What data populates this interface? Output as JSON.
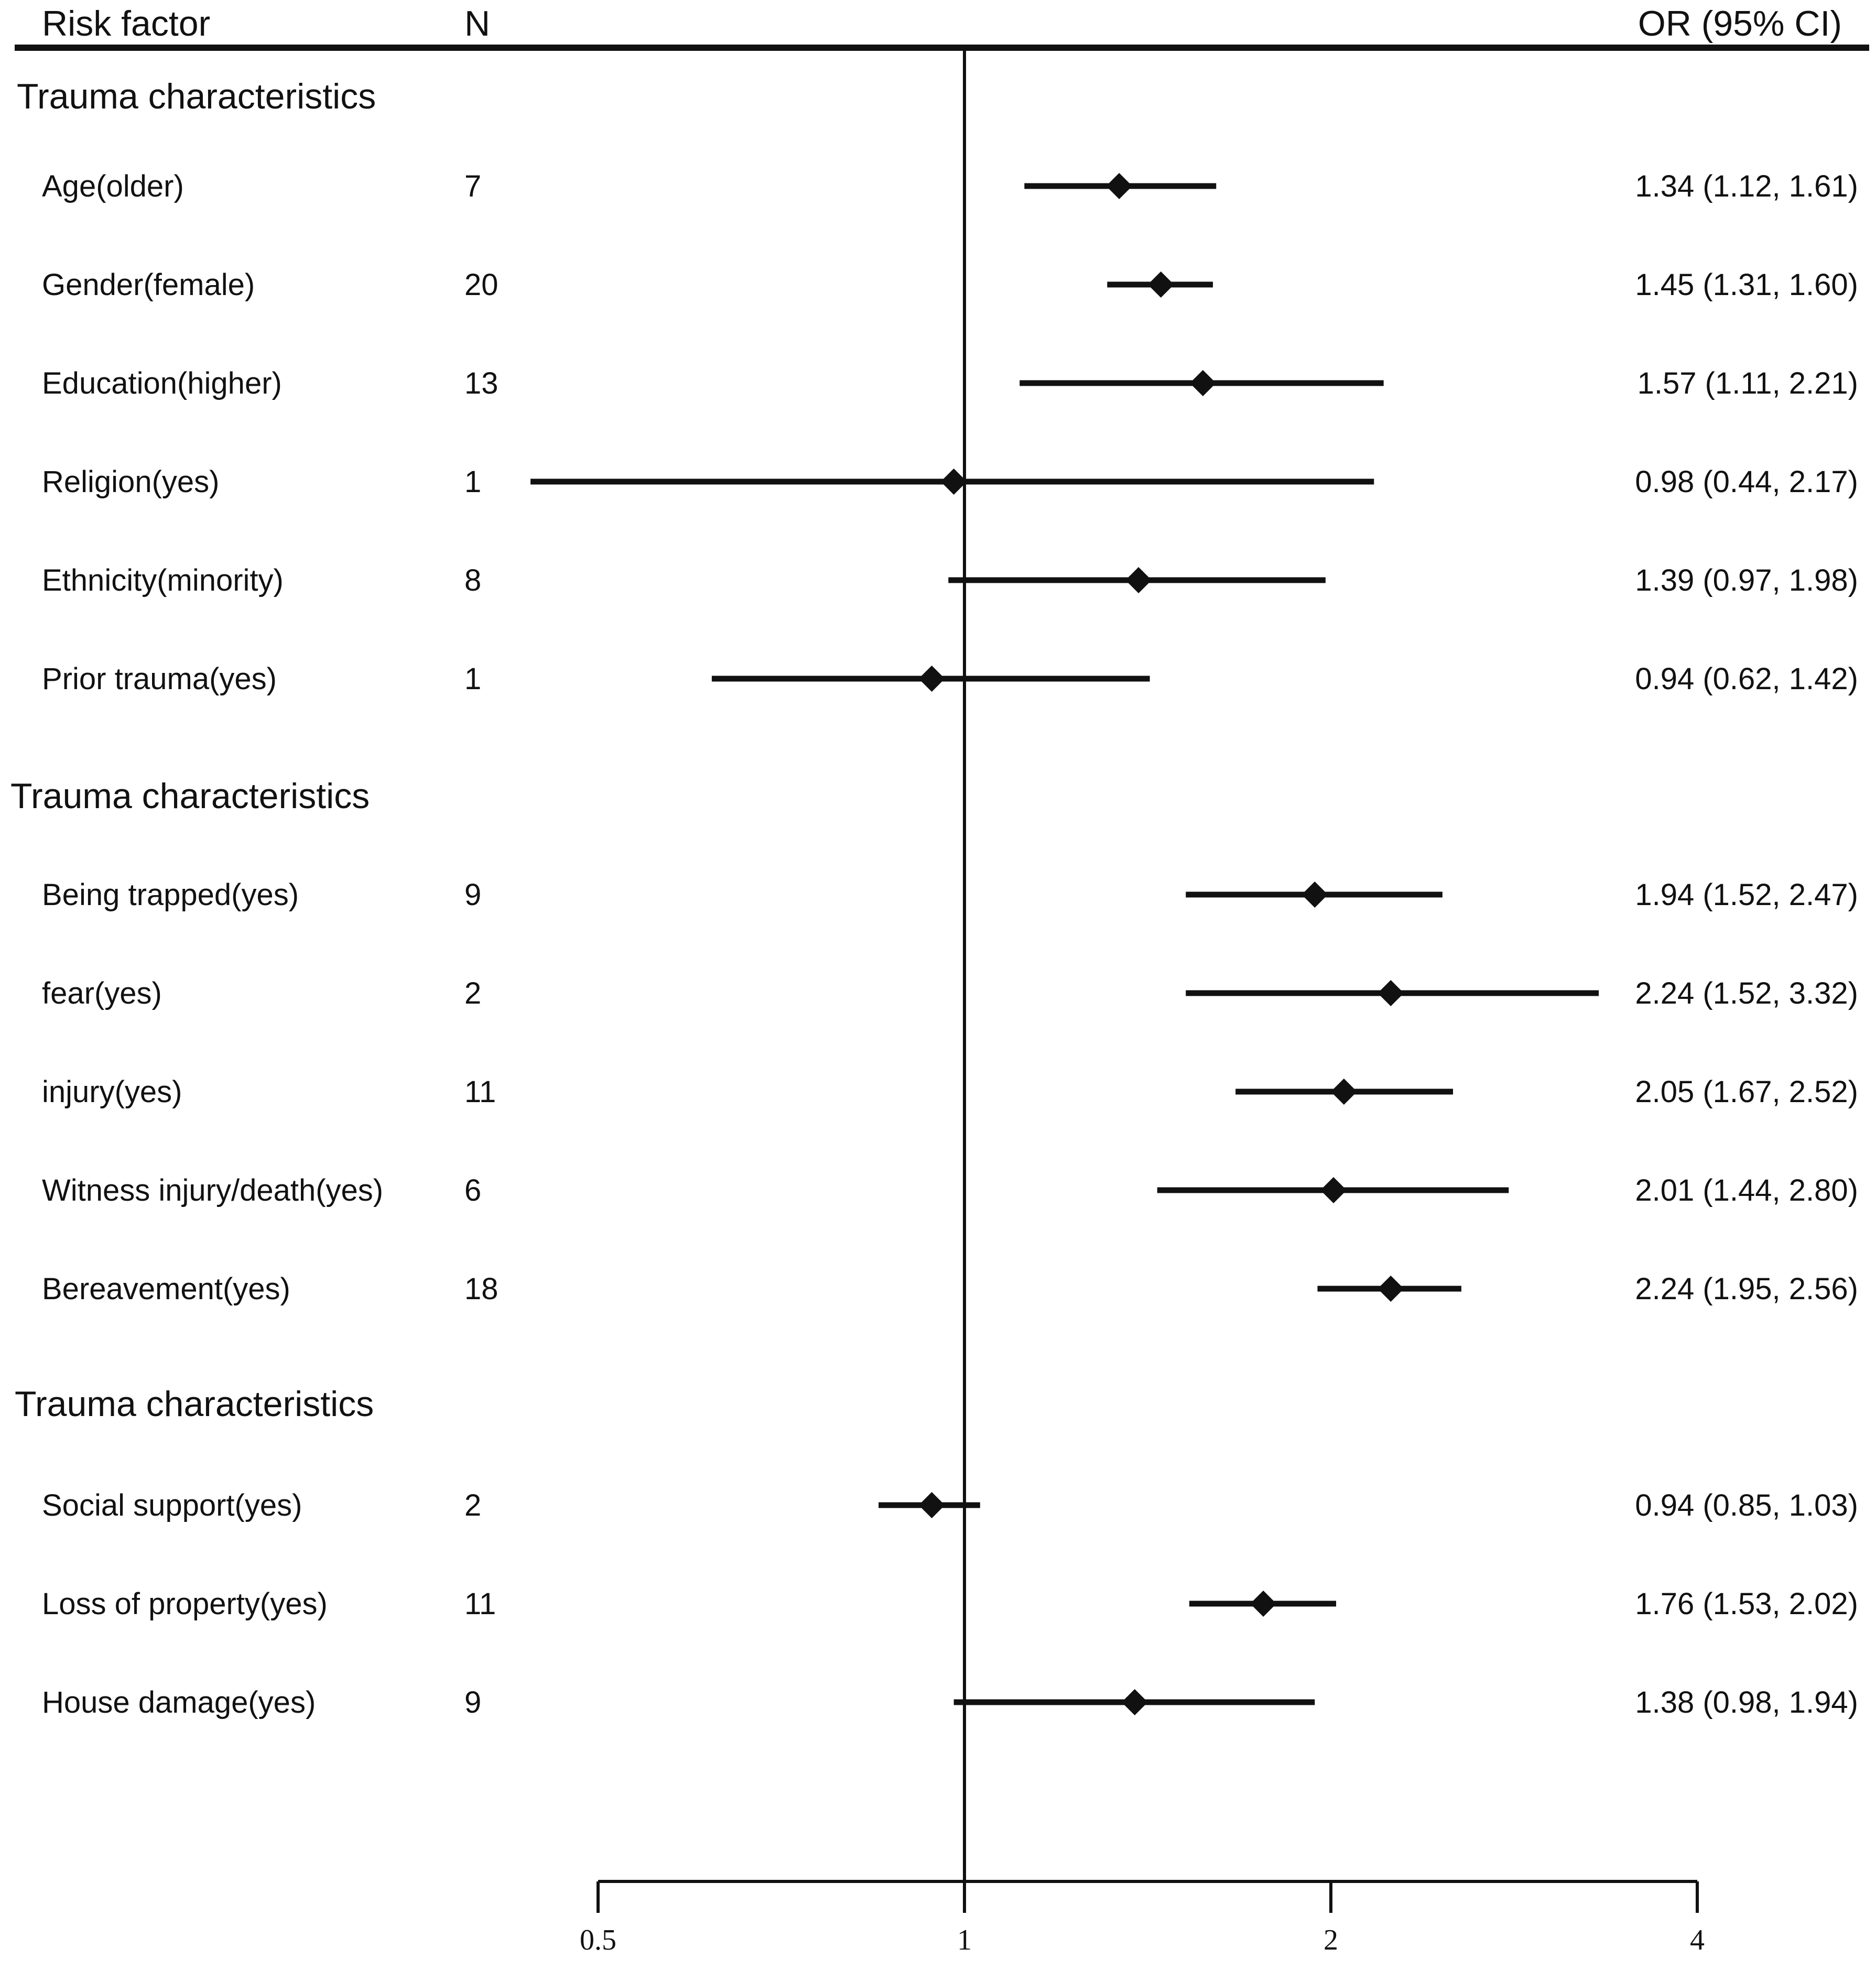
{
  "chart_data": {
    "type": "forest",
    "headers": {
      "factor": "Risk factor",
      "n": "N",
      "or": "OR (95% CI)"
    },
    "x_scale": "log2",
    "xlim": [
      0.5,
      4
    ],
    "reference_line": 1,
    "ticks": [
      {
        "value": 0.5,
        "label": "0.5"
      },
      {
        "value": 1,
        "label": "1"
      },
      {
        "value": 2,
        "label": "2"
      },
      {
        "value": 4,
        "label": "4"
      }
    ],
    "groups": [
      {
        "title": "Trauma characteristics",
        "rows": [
          {
            "label": "Age(older)",
            "n": "7",
            "or": 1.34,
            "lo": 1.12,
            "hi": 1.61,
            "text": "1.34 (1.12, 1.61)"
          },
          {
            "label": "Gender(female)",
            "n": "20",
            "or": 1.45,
            "lo": 1.31,
            "hi": 1.6,
            "text": "1.45 (1.31, 1.60)"
          },
          {
            "label": "Education(higher)",
            "n": "13",
            "or": 1.57,
            "lo": 1.11,
            "hi": 2.21,
            "text": "1.57 (1.11, 2.21)"
          },
          {
            "label": "Religion(yes)",
            "n": "1",
            "or": 0.98,
            "lo": 0.44,
            "hi": 2.17,
            "text": "0.98 (0.44, 2.17)"
          },
          {
            "label": "Ethnicity(minority)",
            "n": "8",
            "or": 1.39,
            "lo": 0.97,
            "hi": 1.98,
            "text": "1.39 (0.97, 1.98)"
          },
          {
            "label": "Prior trauma(yes)",
            "n": "1",
            "or": 0.94,
            "lo": 0.62,
            "hi": 1.42,
            "text": "0.94 (0.62, 1.42)"
          }
        ]
      },
      {
        "title": "Trauma characteristics",
        "rows": [
          {
            "label": "Being trapped(yes)",
            "n": "9",
            "or": 1.94,
            "lo": 1.52,
            "hi": 2.47,
            "text": "1.94 (1.52, 2.47)"
          },
          {
            "label": "fear(yes)",
            "n": "2",
            "or": 2.24,
            "lo": 1.52,
            "hi": 3.32,
            "text": "2.24 (1.52, 3.32)"
          },
          {
            "label": "injury(yes)",
            "n": "11",
            "or": 2.05,
            "lo": 1.67,
            "hi": 2.52,
            "text": "2.05 (1.67, 2.52)"
          },
          {
            "label": "Witness injury/death(yes)",
            "n": "6",
            "or": 2.01,
            "lo": 1.44,
            "hi": 2.8,
            "text": "2.01 (1.44, 2.80)"
          },
          {
            "label": "Bereavement(yes)",
            "n": "18",
            "or": 2.24,
            "lo": 1.95,
            "hi": 2.56,
            "text": "2.24 (1.95, 2.56)"
          }
        ]
      },
      {
        "title": "Trauma characteristics",
        "rows": [
          {
            "label": "Social support(yes)",
            "n": "2",
            "or": 0.94,
            "lo": 0.85,
            "hi": 1.03,
            "text": "0.94 (0.85, 1.03)"
          },
          {
            "label": "Loss of property(yes)",
            "n": "11",
            "or": 1.76,
            "lo": 1.53,
            "hi": 2.02,
            "text": "1.76 (1.53, 2.02)"
          },
          {
            "label": "House damage(yes)",
            "n": "9",
            "or": 1.38,
            "lo": 0.98,
            "hi": 1.94,
            "text": "1.38 (0.98, 1.94)"
          }
        ]
      }
    ]
  }
}
